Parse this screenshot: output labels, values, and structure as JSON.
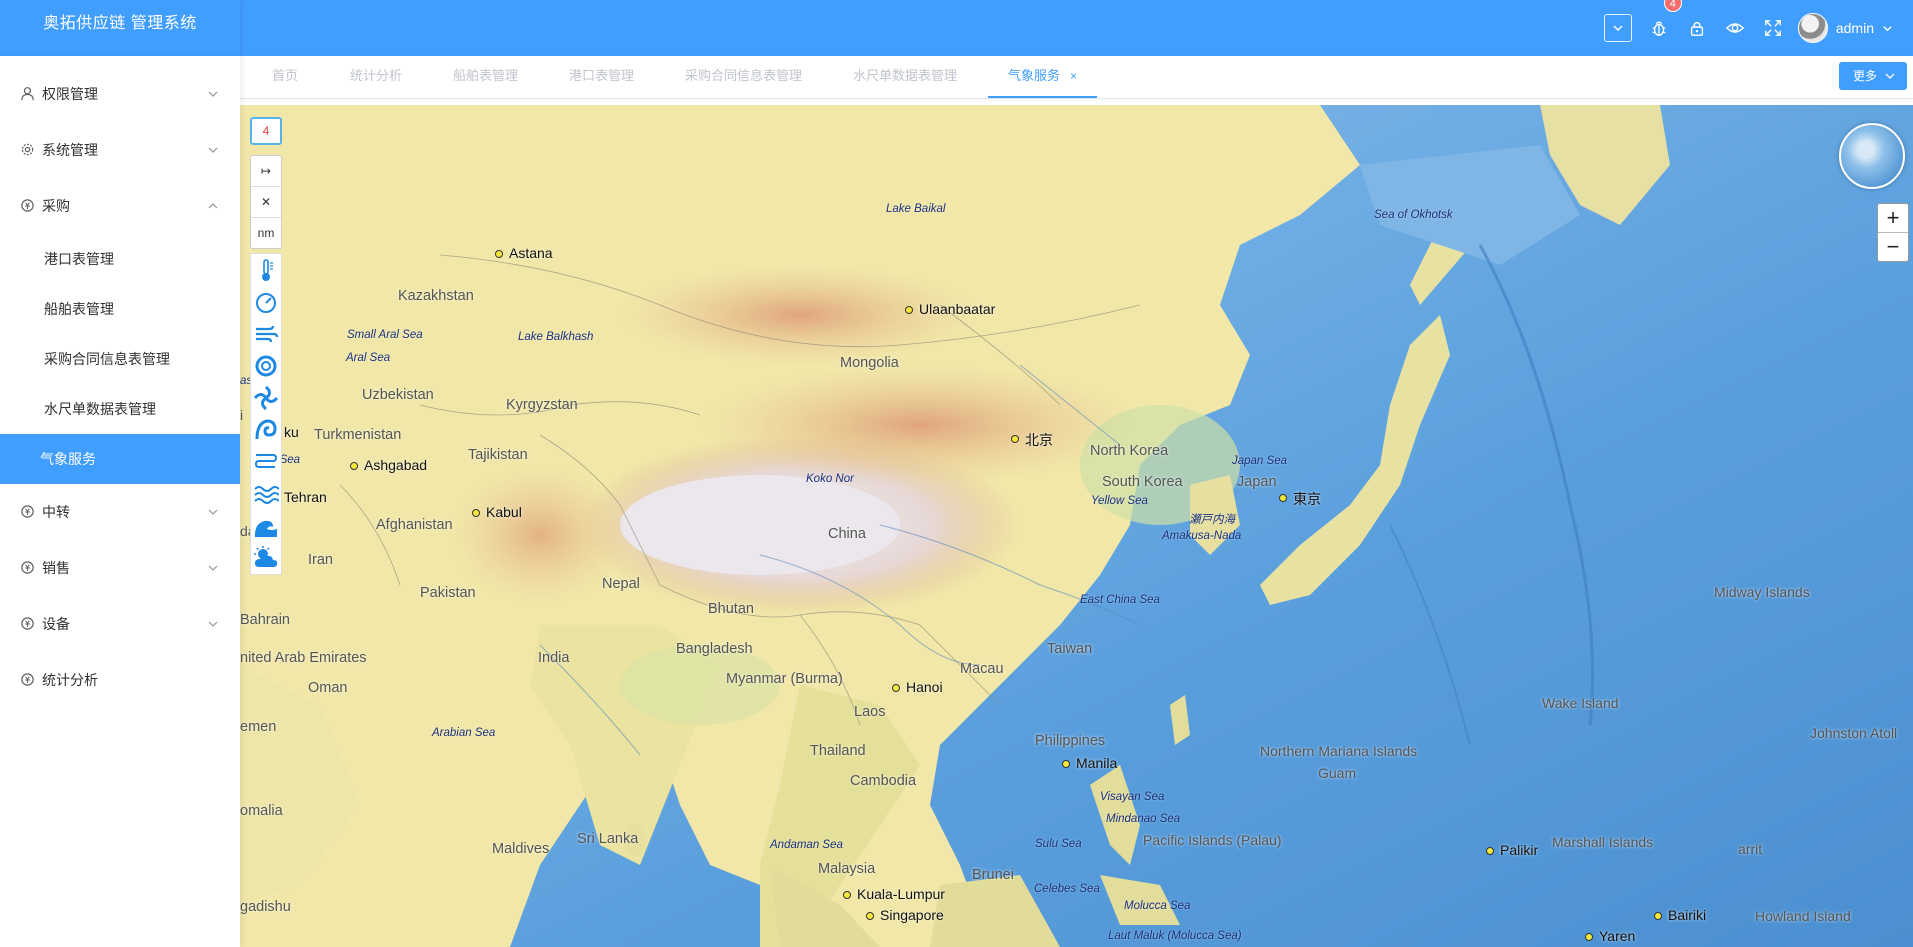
{
  "app": {
    "title": "奥拓供应链 管理系统"
  },
  "header": {
    "notification_count": "4",
    "username": "admin",
    "icons": [
      "dropdown-icon",
      "bug-icon",
      "lock-icon",
      "eye-icon",
      "fullscreen-icon"
    ]
  },
  "sidebar": {
    "items": [
      {
        "label": "权限管理",
        "icon": "user-icon",
        "expanded": false
      },
      {
        "label": "系统管理",
        "icon": "gear-icon",
        "expanded": false
      },
      {
        "label": "采购",
        "icon": "purchase-icon",
        "expanded": true,
        "children": [
          "港口表管理",
          "船舶表管理",
          "采购合同信息表管理",
          "水尺单数据表管理",
          "气象服务"
        ]
      },
      {
        "label": "中转",
        "icon": "transfer-icon",
        "expanded": false
      },
      {
        "label": "销售",
        "icon": "sales-icon",
        "expanded": false
      },
      {
        "label": "设备",
        "icon": "device-icon",
        "expanded": false
      },
      {
        "label": "统计分析",
        "icon": "stats-icon",
        "expanded": false
      }
    ],
    "active_child": "气象服务"
  },
  "tabs": {
    "items": [
      "首页",
      "统计分析",
      "船舶表管理",
      "港口表管理",
      "采购合同信息表管理",
      "水尺单数据表管理",
      "气象服务"
    ],
    "active": "气象服务",
    "close_glyph": "×",
    "more_label": "更多"
  },
  "map": {
    "layer_count": "4",
    "tools": {
      "measure_glyph": "↦",
      "clear_glyph": "✕",
      "unit": "nm"
    },
    "weather_layers": [
      "thermometer-icon",
      "pressure-gauge-icon",
      "wind-icon",
      "typhoon-icon",
      "ocean-current-icon",
      "wave-icon",
      "swell-icon",
      "sea-surface-icon",
      "tide-icon",
      "cloud-sun-icon"
    ],
    "zoom_in": "+",
    "zoom_out": "−",
    "labels": {
      "cities": [
        "Astana",
        "Ulaanbaatar",
        "北京",
        "東京",
        "Ashgabad",
        "Kabul",
        "Tehran",
        "Hanoi",
        "Manila",
        "Kuala-Lumpur",
        "Singapore",
        "Palikir",
        "Bairiki",
        "Yaren"
      ],
      "countries": [
        "Kazakhstan",
        "Mongolia",
        "Uzbekistan",
        "Kyrgyzstan",
        "Turkmenistan",
        "Tajikistan",
        "Afghanistan",
        "Iran",
        "Pakistan",
        "Nepal",
        "Bhutan",
        "China",
        "India",
        "Bangladesh",
        "Myanmar (Burma)",
        "Laos",
        "Thailand",
        "Cambodia",
        "Philippines",
        "Malaysia",
        "Brunei",
        "North Korea",
        "South Korea",
        "Japan",
        "Taiwan",
        "Macau",
        "Sri Lanka",
        "Maldives",
        "Oman",
        "Bahrain",
        "nited Arab Emirates",
        "emen",
        "omalia",
        "gadishu",
        "Pacific Islands (Palau)",
        "Northern Mariana Islands",
        "Guam",
        "Marshall Islands",
        "Midway Islands",
        "Wake Island",
        "Johnston Atoll",
        "Howland Island",
        "arrit",
        "ku",
        "da",
        "i"
      ],
      "seas": [
        "Lake Baikal",
        "Sea of Okhotsk",
        "Small Aral Sea",
        "Aral Sea",
        "Lake Balkhash",
        "Koko Nor",
        "Japan Sea",
        "Yellow Sea",
        "瀬戸内海",
        "Amakusa-Nada",
        "East China Sea",
        "Arabian Sea",
        "Andaman Sea",
        "Visayan Sea",
        "Mindanao Sea",
        "Sulu Sea",
        "Celebes Sea",
        "Molucca Sea",
        "Laut Maluk (Molucca Sea)",
        "asr Sea",
        "n Sea"
      ]
    }
  }
}
